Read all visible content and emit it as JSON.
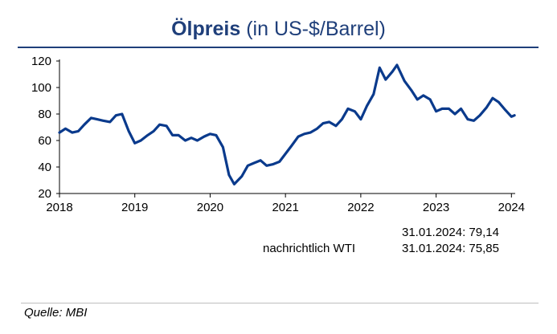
{
  "header": {
    "title_bold": "Ölpreis",
    "title_rest": "(in US-$/Barrel)"
  },
  "notes": {
    "brent_value": "31.01.2024: 79,14",
    "wti_label": "nachrichtlich WTI",
    "wti_value": "31.01.2024: 75,85"
  },
  "footer": {
    "source": "Quelle: MBI"
  },
  "colors": {
    "line": "#0a3a8c",
    "title": "#1f3f7a"
  },
  "chart_data": {
    "type": "line",
    "title": "Ölpreis (in US-$/Barrel)",
    "xlabel": "",
    "ylabel": "",
    "xlim": [
      2018,
      2024.05
    ],
    "ylim": [
      20,
      120
    ],
    "x_ticks": [
      "2018",
      "2019",
      "2020",
      "2021",
      "2022",
      "2023",
      "2024"
    ],
    "y_ticks": [
      "20",
      "40",
      "60",
      "80",
      "100",
      "120"
    ],
    "grid": false,
    "series": [
      {
        "points": [
          [
            2018.0,
            66
          ],
          [
            2018.08,
            69
          ],
          [
            2018.17,
            66
          ],
          [
            2018.25,
            67
          ],
          [
            2018.33,
            72
          ],
          [
            2018.42,
            77
          ],
          [
            2018.5,
            76
          ],
          [
            2018.58,
            75
          ],
          [
            2018.67,
            74
          ],
          [
            2018.75,
            79
          ],
          [
            2018.83,
            80
          ],
          [
            2018.92,
            67
          ],
          [
            2019.0,
            58
          ],
          [
            2019.08,
            60
          ],
          [
            2019.17,
            64
          ],
          [
            2019.25,
            67
          ],
          [
            2019.33,
            72
          ],
          [
            2019.42,
            71
          ],
          [
            2019.5,
            64
          ],
          [
            2019.58,
            64
          ],
          [
            2019.67,
            60
          ],
          [
            2019.75,
            62
          ],
          [
            2019.83,
            60
          ],
          [
            2019.92,
            63
          ],
          [
            2020.0,
            65
          ],
          [
            2020.08,
            64
          ],
          [
            2020.17,
            55
          ],
          [
            2020.25,
            34
          ],
          [
            2020.32,
            27
          ],
          [
            2020.42,
            33
          ],
          [
            2020.5,
            41
          ],
          [
            2020.58,
            43
          ],
          [
            2020.67,
            45
          ],
          [
            2020.75,
            41
          ],
          [
            2020.83,
            42
          ],
          [
            2020.92,
            44
          ],
          [
            2021.0,
            50
          ],
          [
            2021.08,
            56
          ],
          [
            2021.17,
            63
          ],
          [
            2021.25,
            65
          ],
          [
            2021.33,
            66
          ],
          [
            2021.42,
            69
          ],
          [
            2021.5,
            73
          ],
          [
            2021.58,
            74
          ],
          [
            2021.67,
            71
          ],
          [
            2021.75,
            76
          ],
          [
            2021.83,
            84
          ],
          [
            2021.92,
            82
          ],
          [
            2022.0,
            76
          ],
          [
            2022.08,
            86
          ],
          [
            2022.17,
            95
          ],
          [
            2022.25,
            115
          ],
          [
            2022.33,
            106
          ],
          [
            2022.42,
            112
          ],
          [
            2022.48,
            117
          ],
          [
            2022.58,
            105
          ],
          [
            2022.67,
            98
          ],
          [
            2022.75,
            91
          ],
          [
            2022.83,
            94
          ],
          [
            2022.92,
            91
          ],
          [
            2023.0,
            82
          ],
          [
            2023.08,
            84
          ],
          [
            2023.17,
            84
          ],
          [
            2023.25,
            80
          ],
          [
            2023.33,
            84
          ],
          [
            2023.42,
            76
          ],
          [
            2023.5,
            75
          ],
          [
            2023.58,
            79
          ],
          [
            2023.67,
            85
          ],
          [
            2023.75,
            92
          ],
          [
            2023.83,
            89
          ],
          [
            2023.92,
            83
          ],
          [
            2024.0,
            78
          ],
          [
            2024.04,
            79
          ]
        ]
      }
    ]
  }
}
